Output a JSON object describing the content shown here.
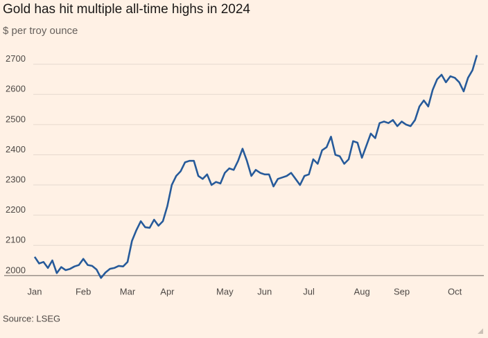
{
  "chart_data": {
    "type": "line",
    "title": "Gold has hit multiple all-time highs in 2024",
    "subtitle": "$ per troy ounce",
    "source": "Source: LSEG",
    "categories": [
      "Jan",
      null,
      null,
      null,
      null,
      null,
      null,
      null,
      null,
      null,
      null,
      "Feb",
      null,
      null,
      null,
      null,
      null,
      null,
      null,
      null,
      null,
      "Mar",
      null,
      null,
      null,
      null,
      null,
      null,
      null,
      null,
      "Apr",
      null,
      null,
      null,
      null,
      null,
      null,
      null,
      null,
      null,
      null,
      null,
      null,
      "May",
      null,
      null,
      null,
      null,
      null,
      null,
      null,
      null,
      "Jun",
      null,
      null,
      null,
      null,
      null,
      null,
      null,
      null,
      null,
      "Jul",
      null,
      null,
      null,
      null,
      null,
      null,
      null,
      null,
      null,
      null,
      null,
      "Aug",
      null,
      null,
      null,
      null,
      null,
      null,
      null,
      null,
      "Sep",
      null,
      null,
      null,
      null,
      null,
      null,
      null,
      null,
      null,
      null,
      null,
      "Oct",
      null,
      null,
      null,
      null,
      null
    ],
    "values": [
      2062,
      2040,
      2045,
      2025,
      2050,
      2008,
      2028,
      2018,
      2022,
      2030,
      2035,
      2055,
      2035,
      2032,
      2020,
      1992,
      2010,
      2022,
      2025,
      2032,
      2030,
      2045,
      2115,
      2150,
      2180,
      2160,
      2158,
      2185,
      2165,
      2180,
      2230,
      2300,
      2330,
      2345,
      2375,
      2380,
      2380,
      2330,
      2320,
      2335,
      2300,
      2310,
      2305,
      2340,
      2355,
      2350,
      2380,
      2420,
      2380,
      2330,
      2350,
      2340,
      2335,
      2335,
      2295,
      2320,
      2325,
      2330,
      2340,
      2320,
      2300,
      2330,
      2335,
      2385,
      2370,
      2415,
      2425,
      2460,
      2400,
      2395,
      2370,
      2385,
      2445,
      2440,
      2390,
      2430,
      2470,
      2455,
      2505,
      2510,
      2505,
      2515,
      2495,
      2510,
      2500,
      2495,
      2515,
      2560,
      2580,
      2560,
      2615,
      2650,
      2665,
      2640,
      2660,
      2655,
      2640,
      2610,
      2655,
      2680,
      2730
    ],
    "color": "#265a9a",
    "ylim": [
      1995,
      2775
    ],
    "yticks": [
      2000,
      2100,
      2200,
      2300,
      2400,
      2500,
      2600,
      2700
    ],
    "grid": true
  }
}
